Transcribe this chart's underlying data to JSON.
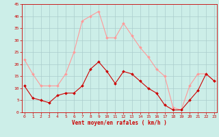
{
  "x": [
    0,
    1,
    2,
    3,
    4,
    5,
    6,
    7,
    8,
    9,
    10,
    11,
    12,
    13,
    14,
    15,
    16,
    17,
    18,
    19,
    20,
    21,
    22,
    23
  ],
  "wind_mean": [
    11,
    6,
    5,
    4,
    7,
    8,
    8,
    11,
    18,
    21,
    17,
    12,
    17,
    16,
    13,
    10,
    8,
    3,
    1,
    1,
    5,
    9,
    16,
    13
  ],
  "wind_gust": [
    22,
    16,
    11,
    11,
    11,
    16,
    25,
    38,
    40,
    42,
    31,
    31,
    37,
    32,
    27,
    23,
    18,
    15,
    2,
    1,
    11,
    16,
    16,
    13
  ],
  "mean_color": "#cc0000",
  "gust_color": "#ff9999",
  "background_color": "#cceee8",
  "grid_color": "#aacccc",
  "xlabel": "Vent moyen/en rafales ( km/h )",
  "xlabel_color": "#cc0000",
  "tick_color": "#cc0000",
  "ylim": [
    0,
    45
  ],
  "yticks": [
    0,
    5,
    10,
    15,
    20,
    25,
    30,
    35,
    40,
    45
  ],
  "xlim": [
    -0.3,
    23.3
  ]
}
